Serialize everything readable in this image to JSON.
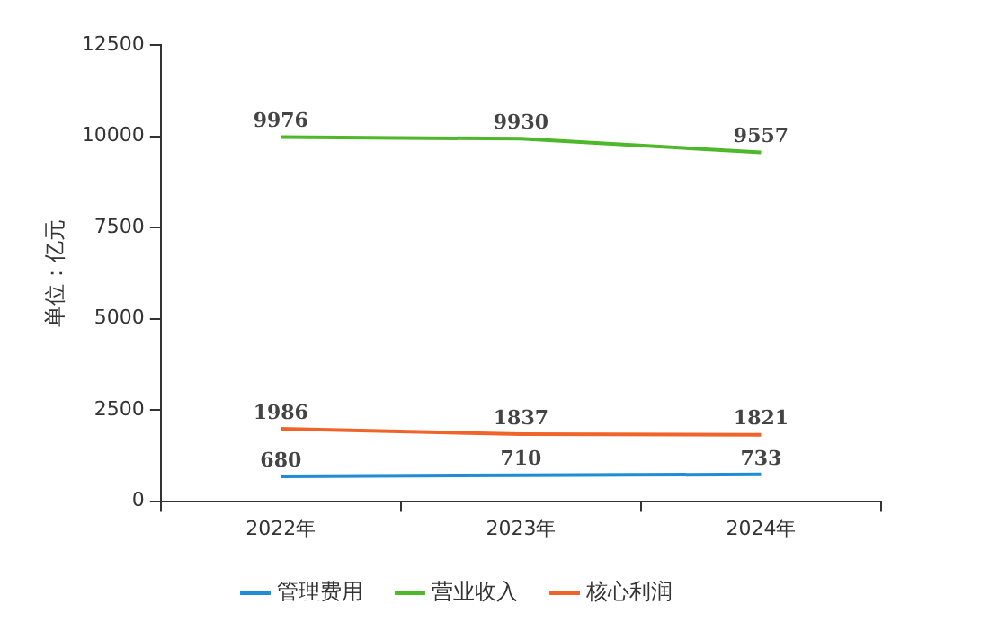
{
  "chart_data": {
    "type": "line",
    "ylabel": "单位：亿元",
    "categories": [
      "2022年",
      "2023年",
      "2024年"
    ],
    "series": [
      {
        "name": "管理费用",
        "color": "#1f8dd6",
        "values": [
          680,
          710,
          733
        ]
      },
      {
        "name": "营业收入",
        "color": "#4db829",
        "values": [
          9976,
          9930,
          9557
        ]
      },
      {
        "name": "核心利润",
        "color": "#f0642a",
        "values": [
          1986,
          1837,
          1821
        ]
      }
    ],
    "ylim": [
      0,
      12500
    ],
    "yticks": [
      0,
      2500,
      5000,
      7500,
      10000,
      12500
    ],
    "grid": false,
    "legend": "bottom",
    "marker": "none",
    "line_style": "solid",
    "data_labels": true
  }
}
